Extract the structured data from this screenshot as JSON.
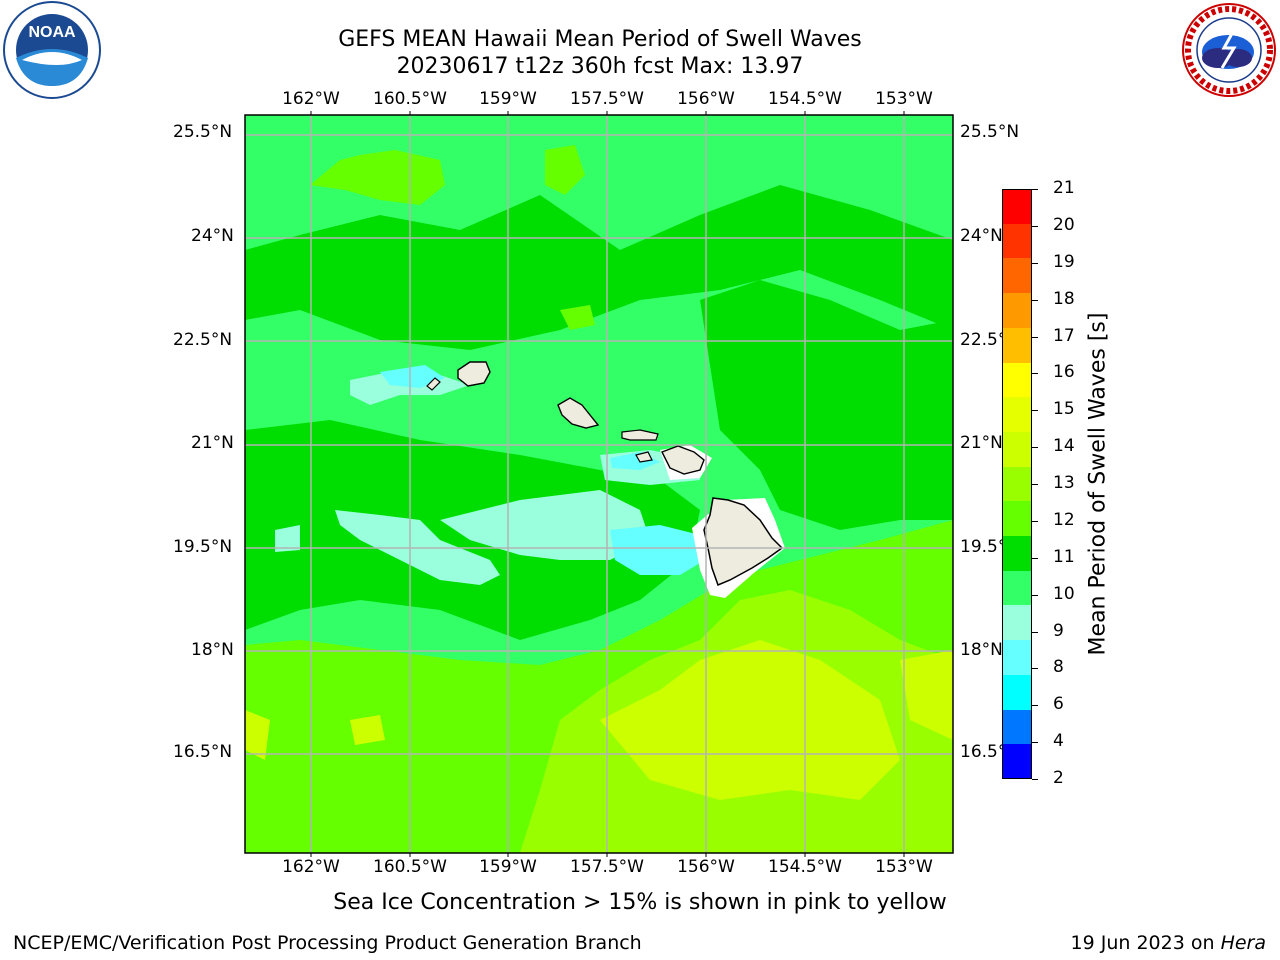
{
  "header": {
    "title_line1": "GEFS MEAN Hawaii Mean Period of Swell Waves",
    "title_line2": "20230617 t12z 360h fcst   Max: 13.97"
  },
  "logos": {
    "noaa": {
      "text": "NOAA",
      "ring_text": "NATIONAL OCEANIC AND ATMOSPHERIC ADMINISTRATION · U.S. DEPARTMENT OF COMMERCE"
    },
    "nws": {
      "ring_text": "NATIONAL WEATHER SERVICE"
    }
  },
  "map": {
    "lon_labels": [
      "162°W",
      "160.5°W",
      "159°W",
      "157.5°W",
      "156°W",
      "154.5°W",
      "153°W"
    ],
    "lat_labels_left": [
      "25.5°N",
      "24°N",
      "22.5°N",
      "21°N",
      "19.5°N",
      "18°N",
      "16.5°N"
    ],
    "lat_labels_right": [
      "25.5°N",
      "24°N",
      "22.5°N",
      "21°N",
      "19.5°N",
      "18°N",
      "16.5°N"
    ]
  },
  "colorbar": {
    "label": "Mean Period of Swell Waves [s]",
    "ticks": [
      "21",
      "20",
      "19",
      "18",
      "17",
      "16",
      "15",
      "14",
      "13",
      "12",
      "11",
      "10",
      "9",
      "8",
      "6",
      "4",
      "2"
    ],
    "colors": [
      "#ff0000",
      "#ff3300",
      "#ff6600",
      "#ff9900",
      "#ffbf00",
      "#ffff00",
      "#e6ff00",
      "#ccff00",
      "#99ff00",
      "#66ff00",
      "#00dd00",
      "#33ff66",
      "#99ffdd",
      "#66ffff",
      "#00ffff",
      "#0077ff",
      "#0000ff"
    ]
  },
  "field_colors": {
    "period_8_9": "#66ffff",
    "period_9_10": "#99ffdd",
    "period_10_11": "#33ff66",
    "period_11_12": "#00dd00",
    "period_12_13": "#66ff00",
    "period_13_14": "#99ff00",
    "period_14_15": "#ccff00",
    "land": "#eeecdf"
  },
  "caption": "Sea Ice Concentration > 15% is shown in pink to yellow",
  "footer": {
    "left": "NCEP/EMC/Verification Post Processing Product Generation Branch",
    "right_prefix": "19 Jun 2023 on ",
    "right_host": "Hera"
  }
}
